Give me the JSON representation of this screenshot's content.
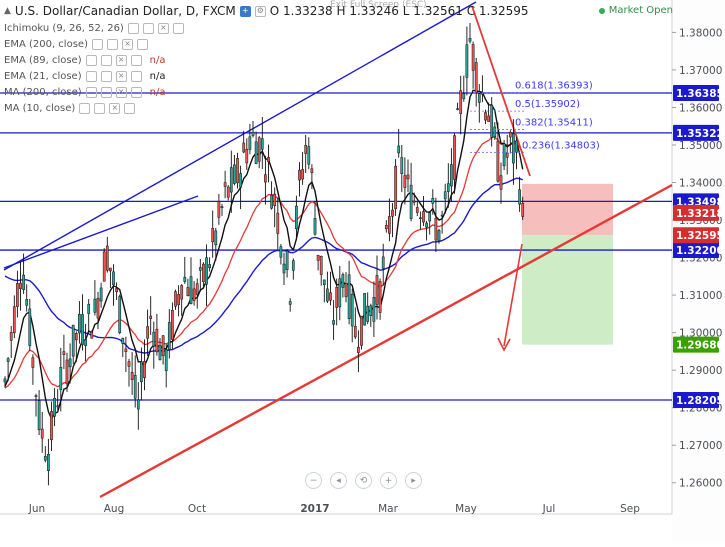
{
  "header": {
    "symbol_title": "U.S. Dollar/Canadian Dollar, D, FXCM",
    "ohlc": "O 1.33238 H 1.33246 L 1.32561 C 1.32595",
    "fullscreen_hint": "Exit Full Screen (ESC)",
    "market_status": "Market Open",
    "colors": {
      "up": "#26a69a",
      "market_open": "#2f8f4a"
    }
  },
  "indicators": [
    {
      "label": "Ichimoku (9, 26, 52, 26)",
      "value": ""
    },
    {
      "label": "EMA (200, close)",
      "value": ""
    },
    {
      "label": "EMA (89, close)",
      "value": "n/a"
    },
    {
      "label": "EMA (21, close)",
      "value": "n/a"
    },
    {
      "label": "MA (200, close)",
      "value": "n/a"
    },
    {
      "label": "MA (10, close)",
      "value": ""
    }
  ],
  "nav_icons": [
    "minus-icon",
    "zoom-out-icon",
    "reset-icon",
    "plus-icon",
    "scroll-right-icon"
  ],
  "chart_data": {
    "type": "candlestick",
    "title": "U.S. Dollar/Canadian Dollar, D, FXCM",
    "x_ticks": [
      "Jun",
      "Aug",
      "Oct",
      "2017",
      "Mar",
      "May",
      "Jul",
      "Sep"
    ],
    "y_ticks": [
      "1.38000",
      "1.37000",
      "1.36000",
      "1.35000",
      "1.34000",
      "1.33000",
      "1.32000",
      "1.31000",
      "1.30000",
      "1.29000",
      "1.28000",
      "1.27000",
      "1.26000"
    ],
    "ylim": [
      1.257,
      1.3865
    ],
    "grid": false,
    "horizontal_levels": [
      {
        "label": "1.36385",
        "value": 1.36385,
        "color": "#1a1acc"
      },
      {
        "label": "1.35322",
        "value": 1.35322,
        "color": "#1a1acc"
      },
      {
        "label": "1.33498",
        "value": 1.33498,
        "color": "#1a1acc"
      },
      {
        "label": "1.32200",
        "value": 1.322,
        "color": "#1a1acc"
      },
      {
        "label": "1.28205",
        "value": 1.28205,
        "color": "#1a1acc"
      }
    ],
    "price_tags": [
      {
        "label": "1.33218",
        "value": 1.33218,
        "color": "#d32f2f"
      },
      {
        "label": "1.32595",
        "value": 1.32595,
        "color": "#d32f2f"
      },
      {
        "label": "1.32200",
        "value": 1.322,
        "color": "#555555"
      },
      {
        "label": "1.29680",
        "value": 1.2968,
        "color": "#38a100"
      }
    ],
    "fib_levels": [
      {
        "label": "0.618(1.36393)",
        "value": 1.36393
      },
      {
        "label": "0.5(1.35902)",
        "value": 1.35902
      },
      {
        "label": "0.382(1.35411)",
        "value": 1.35411
      },
      {
        "label": "0.236(1.34803)",
        "value": 1.34803
      }
    ],
    "trade_box": {
      "entry": 1.32595,
      "stop": 1.33218,
      "target": 1.2968
    },
    "colors": {
      "up": "#26a69a",
      "down": "#ef5350",
      "candle": "#111111",
      "ema200": "#1a1acc",
      "ema89": "#e53935",
      "ema21": "#111111",
      "levels": "#1a1acc",
      "trend": "#e53935",
      "channel": "#1a1acc",
      "stop_zone": "#f6b3b3",
      "target_zone": "#c9ebc0"
    }
  }
}
